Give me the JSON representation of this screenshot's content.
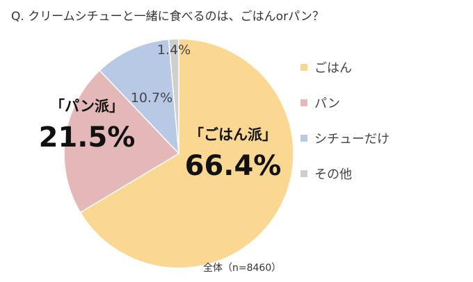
{
  "title": "Q. クリームシチューと一緒に食べるのは、ごはんorパン？",
  "footnote": "全体（n=8460）",
  "chart_data": {
    "type": "pie",
    "title": "Q. クリームシチューと一緒に食べるのは、ごはんorパン？",
    "start_angle": "12 o'clock",
    "direction": "clockwise",
    "slices": [
      {
        "name": "ごはん",
        "value": 66.4,
        "label": "66.4%",
        "group_label": "「ごはん派」",
        "color": "#fbd892"
      },
      {
        "name": "パン",
        "value": 21.5,
        "label": "21.5%",
        "group_label": "「パン派」",
        "color": "#e4b8b8"
      },
      {
        "name": "シチューだけ",
        "value": 10.7,
        "label": "10.7%",
        "color": "#b7c9e5"
      },
      {
        "name": "その他",
        "value": 1.4,
        "label": "1.4%",
        "color": "#cfcfcf"
      }
    ],
    "legend_position": "right"
  }
}
